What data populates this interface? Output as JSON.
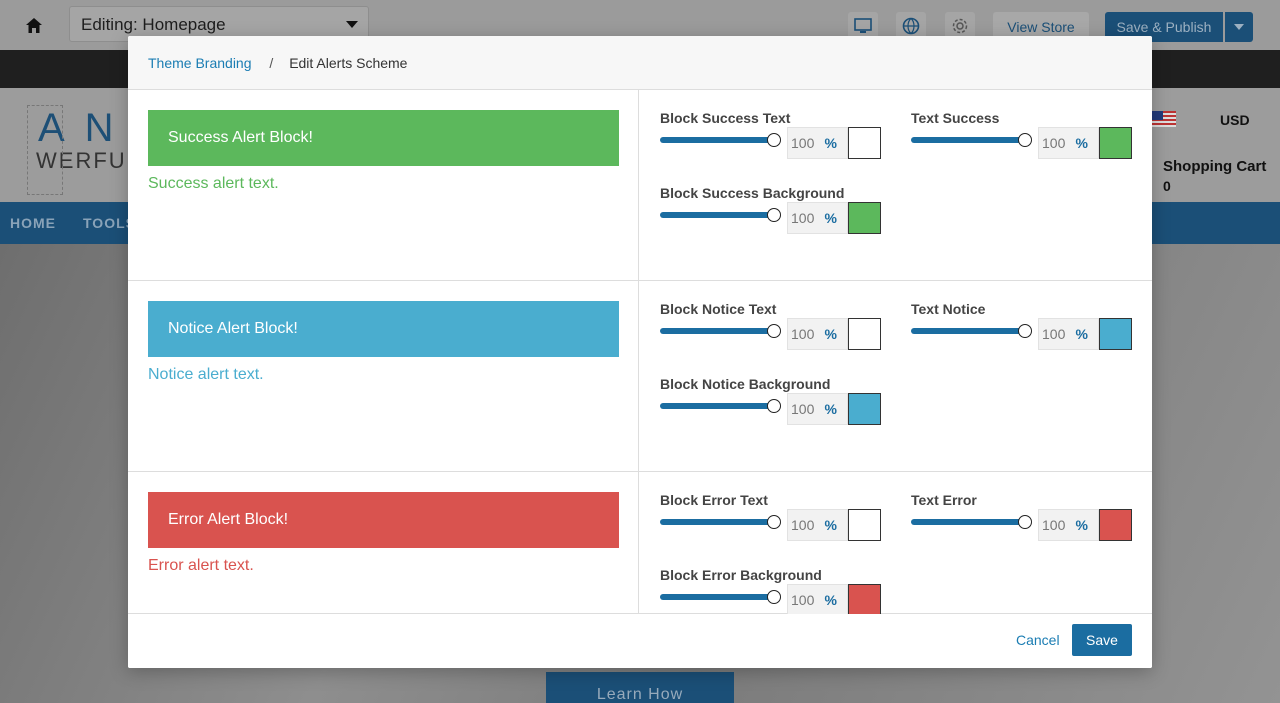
{
  "editor": {
    "page_select": "Editing: Homepage",
    "view_store": "View Store",
    "save_publish": "Save & Publish",
    "icons": [
      "home-icon",
      "desktop-icon",
      "globe-icon",
      "gear-icon",
      "caret-down-icon"
    ]
  },
  "store": {
    "logo_letters": "AN",
    "logo_sub": "WERFU",
    "currency": "USD",
    "cart_label": "Shopping Cart",
    "cart_count": "0",
    "nav": [
      "HOME",
      "TOOLS"
    ],
    "hero_button": "Learn How"
  },
  "modal": {
    "breadcrumb": {
      "parent": "Theme Branding",
      "separator": "/",
      "current": "Edit Alerts Scheme"
    },
    "rows": [
      {
        "block_label": "Success Alert Block!",
        "text_label": "Success alert text.",
        "color": "#5cb85c",
        "controls": {
          "block_text": {
            "label": "Block Success Text",
            "value": "100",
            "swatch": "#ffffff"
          },
          "text": {
            "label": "Text Success",
            "value": "100",
            "swatch": "#5cb85c"
          },
          "block_bg": {
            "label": "Block Success Background",
            "value": "100",
            "swatch": "#5cb85c"
          }
        }
      },
      {
        "block_label": "Notice Alert Block!",
        "text_label": "Notice alert text.",
        "color": "#4aadcf",
        "controls": {
          "block_text": {
            "label": "Block Notice Text",
            "value": "100",
            "swatch": "#ffffff"
          },
          "text": {
            "label": "Text Notice",
            "value": "100",
            "swatch": "#4aadcf"
          },
          "block_bg": {
            "label": "Block Notice Background",
            "value": "100",
            "swatch": "#4aadcf"
          }
        }
      },
      {
        "block_label": "Error Alert Block!",
        "text_label": "Error alert text.",
        "color": "#d9534f",
        "controls": {
          "block_text": {
            "label": "Block Error Text",
            "value": "100",
            "swatch": "#ffffff"
          },
          "text": {
            "label": "Text Error",
            "value": "100",
            "swatch": "#d9534f"
          },
          "block_bg": {
            "label": "Block Error Background",
            "value": "100",
            "swatch": "#d9534f"
          }
        }
      }
    ],
    "percent_symbol": "%",
    "cancel": "Cancel",
    "save": "Save"
  }
}
